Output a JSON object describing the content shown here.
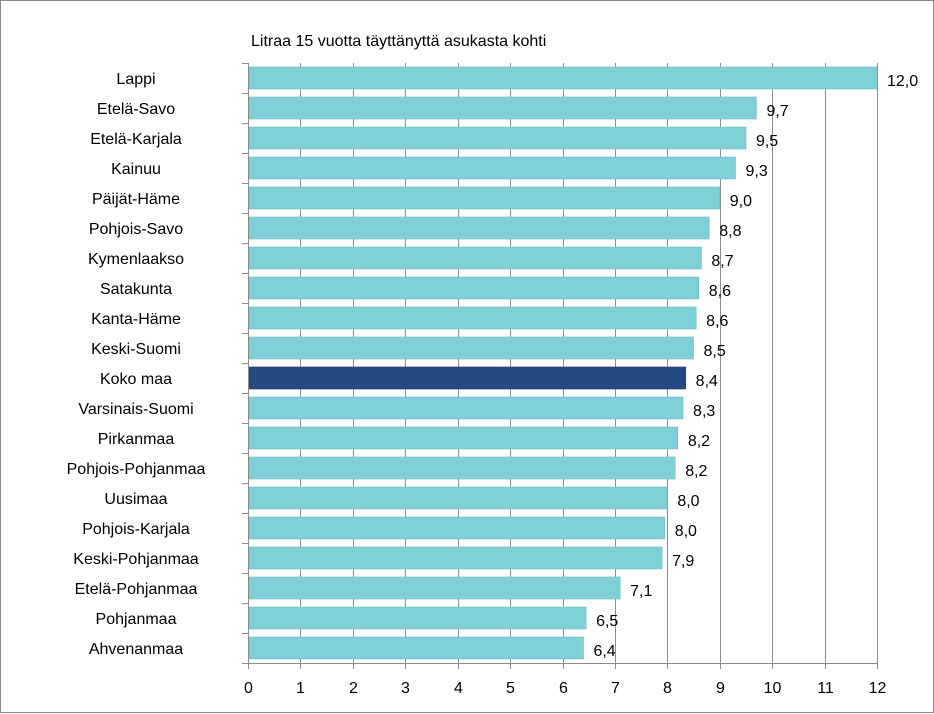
{
  "chart_data": {
    "type": "bar",
    "orientation": "horizontal",
    "title": "Litraa 15 vuotta täyttänyttä asukasta kohti",
    "xlabel": "",
    "ylabel": "",
    "xlim": [
      0,
      12
    ],
    "xticks": [
      "0",
      "1",
      "2",
      "3",
      "4",
      "5",
      "6",
      "7",
      "8",
      "9",
      "10",
      "11",
      "12"
    ],
    "grid": "vertical",
    "legend": "none",
    "bar_color": "#7ecfd6",
    "highlight_color": "#234a82",
    "highlight_category": "Koko maa",
    "categories": [
      "Lappi",
      "Etelä-Savo",
      "Etelä-Karjala",
      "Kainuu",
      "Päijät-Häme",
      "Pohjois-Savo",
      "Kymenlaakso",
      "Satakunta",
      "Kanta-Häme",
      "Keski-Suomi",
      "Koko maa",
      "Varsinais-Suomi",
      "Pirkanmaa",
      "Pohjois-Pohjanmaa",
      "Uusimaa",
      "Pohjois-Karjala",
      "Keski-Pohjanmaa",
      "Etelä-Pohjanmaa",
      "Pohjanmaa",
      "Ahvenanmaa"
    ],
    "values": [
      12.0,
      9.7,
      9.5,
      9.3,
      9.0,
      8.8,
      8.65,
      8.6,
      8.55,
      8.5,
      8.35,
      8.3,
      8.2,
      8.15,
      8.0,
      7.95,
      7.9,
      7.1,
      6.45,
      6.4
    ],
    "value_labels": [
      "12,0",
      "9,7",
      "9,5",
      "9,3",
      "9,0",
      "8,8",
      "8,7",
      "8,6",
      "8,6",
      "8,5",
      "8,4",
      "8,3",
      "8,2",
      "8,2",
      "8,0",
      "8,0",
      "7,9",
      "7,1",
      "6,5",
      "6,4"
    ]
  }
}
